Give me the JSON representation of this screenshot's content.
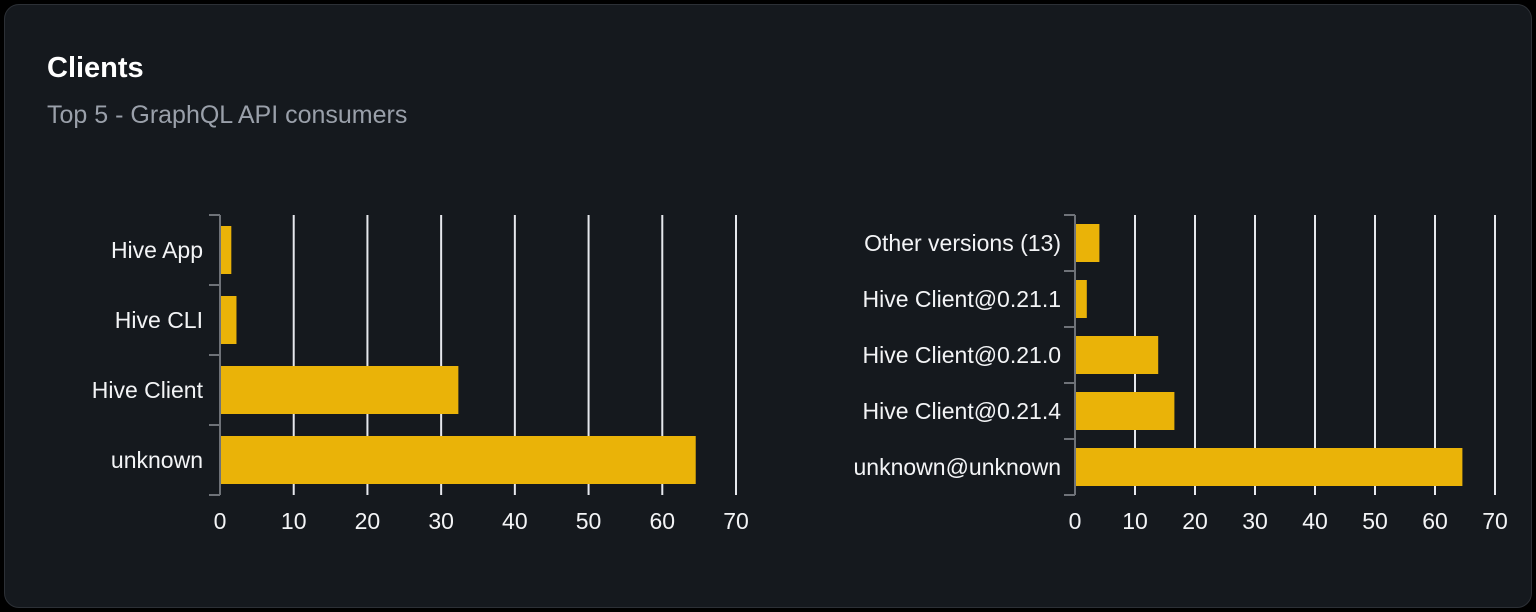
{
  "card": {
    "title": "Clients",
    "subtitle": "Top 5 - GraphQL API consumers"
  },
  "colors": {
    "page_bg": "#000000",
    "card_bg": "#15191e",
    "card_border": "#2c3036",
    "title": "#ffffff",
    "subtitle": "#9aa0aa",
    "bar": "#eab308",
    "gridline": "#e6e8ed",
    "axis": "#6e7278",
    "label": "#f3f4f6"
  },
  "chart_data": [
    {
      "type": "bar",
      "orientation": "horizontal",
      "title": "",
      "categories": [
        "Hive App",
        "Hive CLI",
        "Hive Client",
        "unknown"
      ],
      "values": [
        1.4,
        2.1,
        32.2,
        64.4
      ],
      "xlabel": "",
      "ylabel": "",
      "xlim": [
        0,
        70
      ],
      "xticks": [
        0,
        10,
        20,
        30,
        40,
        50,
        60,
        70
      ],
      "grid": true,
      "legend": false,
      "bar_color": "#eab308"
    },
    {
      "type": "bar",
      "orientation": "horizontal",
      "title": "",
      "categories": [
        "Other versions (13)",
        "Hive Client@0.21.1",
        "Hive Client@0.21.0",
        "Hive Client@0.21.4",
        "unknown@unknown"
      ],
      "values": [
        3.9,
        1.8,
        13.7,
        16.4,
        64.4
      ],
      "xlabel": "",
      "ylabel": "",
      "xlim": [
        0,
        70
      ],
      "xticks": [
        0,
        10,
        20,
        30,
        40,
        50,
        60,
        70
      ],
      "grid": true,
      "legend": false,
      "bar_color": "#eab308"
    }
  ]
}
